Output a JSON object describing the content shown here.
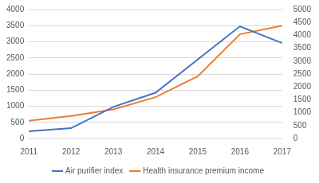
{
  "chart_data": {
    "type": "line",
    "categories": [
      "2011",
      "2012",
      "2013",
      "2014",
      "2015",
      "2016",
      "2017"
    ],
    "series": [
      {
        "name": "Air purifier index",
        "color": "#4472c4",
        "values": [
          220,
          320,
          980,
          1420,
          2450,
          3480,
          2960
        ]
      },
      {
        "name": "Health insurance premium income",
        "color": "#ed7d31",
        "axis": "y2",
        "values": [
          690,
          875,
          1125,
          1600,
          2410,
          4040,
          4375
        ]
      }
    ],
    "ylim": [
      0,
      4000
    ],
    "yticks": [
      0,
      500,
      1000,
      1500,
      2000,
      2500,
      3000,
      3500,
      4000
    ],
    "y2lim": [
      0,
      5000
    ],
    "y2ticks": [
      0,
      500,
      1000,
      1500,
      2000,
      2500,
      3000,
      3500,
      4000,
      4500,
      5000
    ],
    "grid": true,
    "legend": "bottom"
  }
}
